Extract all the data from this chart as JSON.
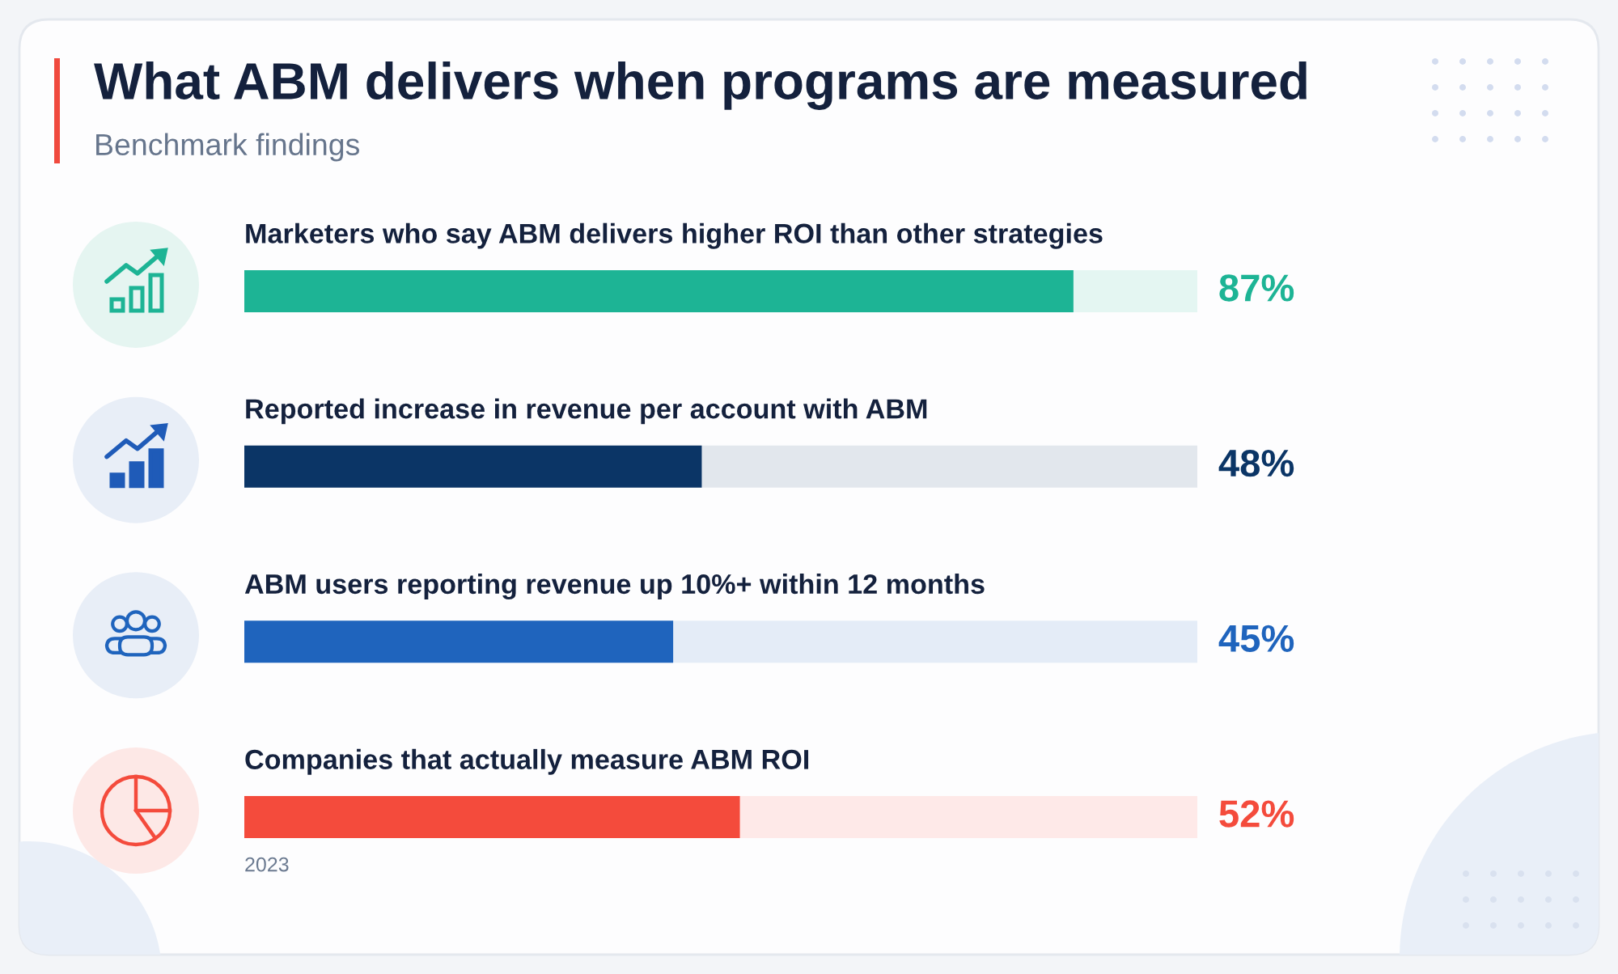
{
  "chart_data": {
    "type": "bar",
    "orientation": "horizontal",
    "title": "What ABM delivers when programs are measured",
    "subtitle": "Benchmark findings",
    "categories": [
      "Marketers who say ABM delivers higher ROI than other strategies",
      "Reported increase in revenue per account with ABM",
      "ABM users reporting revenue up 10%+ within 12 months",
      "Companies that actually measure ABM ROI"
    ],
    "values": [
      87,
      48,
      45,
      52
    ],
    "colors": [
      "#1db495",
      "#0b3566",
      "#1f64bd",
      "#f44b3c"
    ],
    "value_labels": [
      "87%",
      "48%",
      "45%",
      "52%"
    ],
    "xlim": [
      0,
      100
    ],
    "tick_labels": "y",
    "annotations": [
      {
        "text": "2023",
        "x": 0,
        "y": "Companies that actually measure ABM ROI"
      }
    ]
  }
}
